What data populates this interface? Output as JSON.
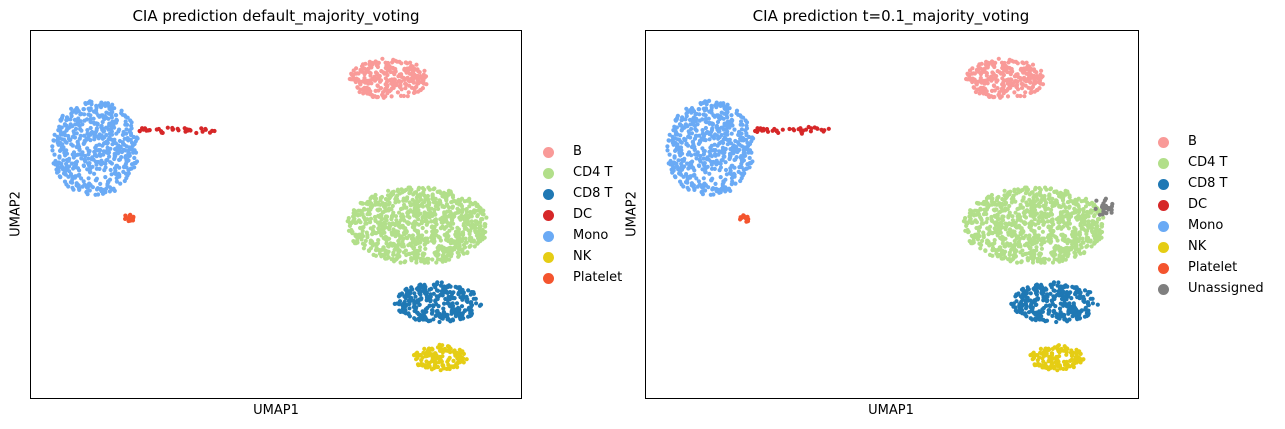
{
  "palette": {
    "B": "#f99a98",
    "CD4 T": "#b2df8a",
    "CD8 T": "#1f78b4",
    "DC": "#d62728",
    "Mono": "#6aaaf5",
    "NK": "#e5cd14",
    "Platelet": "#f4542e",
    "Unassigned": "#7f7f7f"
  },
  "chart_data": [
    {
      "type": "scatter",
      "title": "CIA prediction default_majority_voting",
      "xlabel": "UMAP1",
      "ylabel": "UMAP2",
      "xticks": [],
      "yticks": [],
      "legend_position": "right-outside",
      "legend": [
        "B",
        "CD4 T",
        "CD8 T",
        "DC",
        "Mono",
        "NK",
        "Platelet"
      ],
      "clusters": [
        {
          "name": "B",
          "cx": 7.3,
          "cy": 8.7,
          "rx": 0.8,
          "ry": 0.55,
          "n": 260
        },
        {
          "name": "CD4 T",
          "cx": 7.9,
          "cy": 4.7,
          "rx": 1.45,
          "ry": 1.05,
          "n": 900
        },
        {
          "name": "CD8 T",
          "cx": 8.3,
          "cy": 2.6,
          "rx": 0.9,
          "ry": 0.55,
          "n": 300
        },
        {
          "name": "NK",
          "cx": 8.35,
          "cy": 1.1,
          "rx": 0.55,
          "ry": 0.35,
          "n": 140
        },
        {
          "name": "Mono",
          "cx": 1.3,
          "cy": 6.8,
          "rx": 0.9,
          "ry": 1.3,
          "n": 550
        },
        {
          "name": "DC",
          "cx": 3.0,
          "cy": 7.3,
          "rx": 0.9,
          "ry": 0.1,
          "n": 35
        },
        {
          "name": "Platelet",
          "cx": 2.0,
          "cy": 4.9,
          "rx": 0.1,
          "ry": 0.12,
          "n": 14
        }
      ]
    },
    {
      "type": "scatter",
      "title": "CIA prediction t=0.1_majority_voting",
      "xlabel": "UMAP1",
      "ylabel": "UMAP2",
      "xticks": [],
      "yticks": [],
      "legend_position": "right-outside",
      "legend": [
        "B",
        "CD4 T",
        "CD8 T",
        "DC",
        "Mono",
        "NK",
        "Platelet",
        "Unassigned"
      ],
      "clusters": [
        {
          "name": "B",
          "cx": 7.3,
          "cy": 8.7,
          "rx": 0.8,
          "ry": 0.55,
          "n": 260
        },
        {
          "name": "CD4 T",
          "cx": 7.9,
          "cy": 4.7,
          "rx": 1.45,
          "ry": 1.05,
          "n": 880
        },
        {
          "name": "CD8 T",
          "cx": 8.3,
          "cy": 2.6,
          "rx": 0.9,
          "ry": 0.55,
          "n": 300
        },
        {
          "name": "NK",
          "cx": 8.35,
          "cy": 1.1,
          "rx": 0.55,
          "ry": 0.35,
          "n": 140
        },
        {
          "name": "Mono",
          "cx": 1.3,
          "cy": 6.8,
          "rx": 0.9,
          "ry": 1.3,
          "n": 550
        },
        {
          "name": "DC",
          "cx": 3.0,
          "cy": 7.3,
          "rx": 0.9,
          "ry": 0.1,
          "n": 35
        },
        {
          "name": "Platelet",
          "cx": 2.0,
          "cy": 4.9,
          "rx": 0.1,
          "ry": 0.12,
          "n": 14
        },
        {
          "name": "Unassigned",
          "cx": 9.3,
          "cy": 5.2,
          "rx": 0.2,
          "ry": 0.3,
          "n": 22
        }
      ]
    }
  ]
}
